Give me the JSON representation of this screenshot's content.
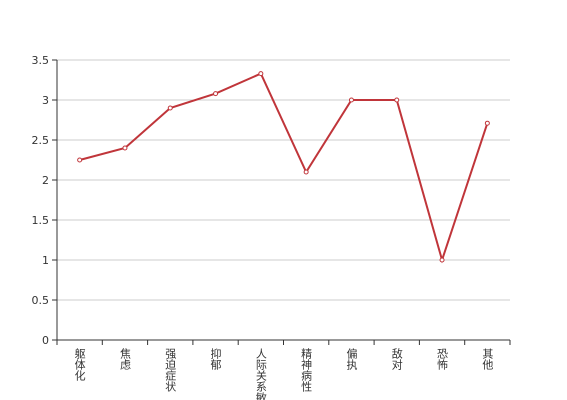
{
  "chart_data": {
    "type": "line",
    "categories": [
      "躯体化",
      "焦虑",
      "强迫症状",
      "抑郁",
      "人际关系敏感",
      "精神病性",
      "偏执",
      "敌对",
      "恐怖",
      "其他"
    ],
    "series": [
      {
        "color": "#c0353a",
        "values": [
          2.25,
          2.4,
          2.9,
          3.08,
          3.33,
          2.1,
          3.0,
          3.0,
          1.0,
          2.71
        ]
      }
    ],
    "ylim": [
      0,
      3.5
    ],
    "yticks": [
      0,
      0.5,
      1,
      1.5,
      2,
      2.5,
      3,
      3.5
    ],
    "grid": true
  }
}
